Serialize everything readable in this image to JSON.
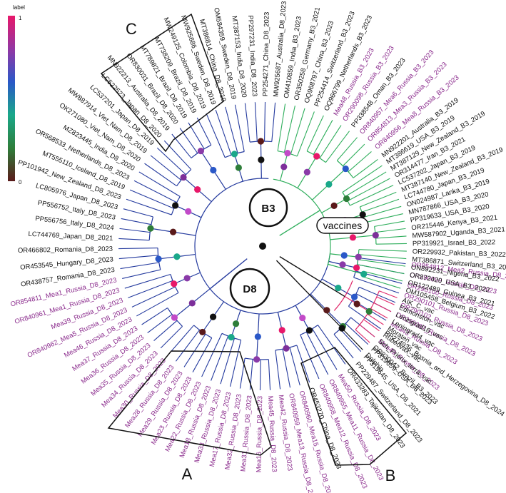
{
  "legend": {
    "title": "label",
    "max": "1",
    "min": "0"
  },
  "colors": {
    "b3_branch": "#2fae5c",
    "d8_branch": "#243a9e",
    "vaccine_branch": "#e0286a",
    "root_branch": "#111111",
    "purple_text": "#8a2a8c",
    "black_text": "#101010"
  },
  "clades": {
    "b3": "B3",
    "d8": "D8",
    "vaccines": "vaccines"
  },
  "boxes": {
    "a": "A",
    "b": "B",
    "c": "C"
  },
  "tips": [
    {
      "label": "OR854812_Mea2_Russia_D8_2023",
      "angle": 7,
      "color": "purple",
      "group": "D8"
    },
    {
      "label": "OR290099_Russia_D8_2023",
      "angle": 11,
      "color": "purple",
      "group": "D8"
    },
    {
      "label": "OR290100_Russia_D8_2023",
      "angle": 15,
      "color": "purple",
      "group": "D8"
    },
    {
      "label": "OR290101_Russia_D8_2023",
      "angle": 19,
      "color": "purple",
      "group": "D8"
    },
    {
      "label": "OR290102_Russia_D8_2023",
      "angle": 23,
      "color": "purple",
      "group": "D8"
    },
    {
      "label": "OR290097_Russia_D8_2023",
      "angle": 27,
      "color": "purple",
      "group": "D8"
    },
    {
      "label": "Mea43_Russia_D8_2023",
      "angle": 31,
      "color": "purple",
      "group": "D8"
    },
    {
      "label": "PP274936_Bosnia_and_Herzegovina_D8_2024",
      "angle": 35,
      "color": "black",
      "group": "D8"
    },
    {
      "label": "Mea49_Russia_D8_2023",
      "angle": 39,
      "color": "purple",
      "group": "D8"
    },
    {
      "label": "PP319659_USA_D8_2023",
      "angle": 43,
      "color": "black",
      "group": "D8"
    },
    {
      "label": "PP319645_USA_D8_2021",
      "angle": 47,
      "color": "black",
      "group": "D8"
    },
    {
      "label": "PP229487_Switzerland_D8_2023",
      "angle": 51,
      "color": "black",
      "group": "D8"
    },
    {
      "label": "OR433283_Tajikistan_D8_2023",
      "angle": 55,
      "color": "black",
      "group": "D8"
    },
    {
      "label": "Mea50_Russia_D8_2023",
      "angle": 59,
      "color": "purple",
      "group": "D8"
    },
    {
      "label": "OR840955_Mea11_Russia_D8_2023",
      "angle": 63,
      "color": "purple",
      "group": "D8"
    },
    {
      "label": "OR840958_Mea12_Russia_D8_2023",
      "angle": 67,
      "color": "purple",
      "group": "D8"
    },
    {
      "label": "OR453270_China_D8_2023",
      "angle": 71,
      "color": "black",
      "group": "D8"
    },
    {
      "label": "OR840960_Mea15_Russia_D8_2023",
      "angle": 75,
      "color": "purple",
      "group": "D8"
    },
    {
      "label": "OR840959_Mea13_Russia_D8_2023",
      "angle": 79,
      "color": "purple",
      "group": "D8"
    },
    {
      "label": "Mea42_Russia_D8_2023",
      "angle": 83,
      "color": "purple",
      "group": "D8"
    },
    {
      "label": "Mea45_Russia_D8_2023",
      "angle": 87,
      "color": "purple",
      "group": "D8"
    },
    {
      "label": "Mea16_Russia_D8_2023",
      "angle": 91,
      "color": "purple",
      "group": "D8"
    },
    {
      "label": "Mea31_Russia_D8_2023",
      "angle": 95,
      "color": "purple",
      "group": "D8"
    },
    {
      "label": "Mea32_Russia_D8_2023",
      "angle": 99,
      "color": "purple",
      "group": "D8"
    },
    {
      "label": "Mea17_Russia_D8_2023",
      "angle": 103,
      "color": "purple",
      "group": "D8"
    },
    {
      "label": "Mea33_Russia_D8_2023",
      "angle": 107,
      "color": "purple",
      "group": "D8"
    },
    {
      "label": "Mea18_Russia_D8_2023",
      "angle": 111,
      "color": "purple",
      "group": "D8"
    },
    {
      "label": "Mea22_Russia_D8_2023",
      "angle": 115,
      "color": "purple",
      "group": "D8"
    },
    {
      "label": "Mea23_Russia_D8_2023",
      "angle": 119,
      "color": "purple",
      "group": "D8"
    },
    {
      "label": "Mea29_Russia_D8_2023",
      "angle": 123,
      "color": "purple",
      "group": "D8"
    },
    {
      "label": "Mea28_Russia_D8_2023",
      "angle": 127,
      "color": "purple",
      "group": "D8"
    },
    {
      "label": "Mea30_Russia_D8_2023",
      "angle": 131,
      "color": "purple",
      "group": "D8"
    },
    {
      "label": "Mea34_Russia_D8_2023",
      "angle": 135,
      "color": "purple",
      "group": "D8"
    },
    {
      "label": "Mea35_Russia_D8_2023",
      "angle": 139,
      "color": "purple",
      "group": "D8"
    },
    {
      "label": "Mea36_Russia_D8_2023",
      "angle": 143,
      "color": "purple",
      "group": "D8"
    },
    {
      "label": "Mea37_Russia_D8_2023",
      "angle": 147,
      "color": "purple",
      "group": "D8"
    },
    {
      "label": "Mea46_Russia_D8_2023",
      "angle": 151,
      "color": "purple",
      "group": "D8"
    },
    {
      "label": "OR840962_Mea5_Russia_D8_2023",
      "angle": 155,
      "color": "purple",
      "group": "D8"
    },
    {
      "label": "Mea39_Russia_D8_2023",
      "angle": 159,
      "color": "purple",
      "group": "D8"
    },
    {
      "label": "OR840961_Mea1_Russia_D8_2023",
      "angle": 163,
      "color": "purple",
      "group": "D8"
    },
    {
      "label": "OR854811_Mea1_Russia_D8_2023",
      "angle": 167,
      "color": "purple",
      "group": "D8"
    },
    {
      "label": "OR438757_Romania_D8_2023",
      "angle": 171,
      "color": "black",
      "group": "D8"
    },
    {
      "label": "OR453545_Hungary_D8_2023",
      "angle": 175,
      "color": "black",
      "group": "D8"
    },
    {
      "label": "OR466802_Romania_D8_2023",
      "angle": 179,
      "color": "black",
      "group": "D8"
    },
    {
      "label": "LC744769_Japan_D8_2021",
      "angle": 183,
      "color": "black",
      "group": "D8"
    },
    {
      "label": "PP556756_Italy_D8_2024",
      "angle": 187,
      "color": "black",
      "group": "D8"
    },
    {
      "label": "PP556752_Italy_D8_2023",
      "angle": 191,
      "color": "black",
      "group": "D8"
    },
    {
      "label": "LC805976_Japan_D8_2023",
      "angle": 195,
      "color": "black",
      "group": "D8"
    },
    {
      "label": "PP101942_New_Zealand_D8_2023",
      "angle": 199,
      "color": "black",
      "group": "D8"
    },
    {
      "label": "MT555110_Iceland_D8_2019",
      "angle": 203,
      "color": "black",
      "group": "D8"
    },
    {
      "label": "OR568533_Netherlands_D8_2023",
      "angle": 207,
      "color": "black",
      "group": "D8"
    },
    {
      "label": "MZ823445_India_D8_2020",
      "angle": 211,
      "color": "black",
      "group": "D8"
    },
    {
      "label": "OK271080_Viet_Nam_D8_2020",
      "angle": 215,
      "color": "black",
      "group": "D8"
    },
    {
      "label": "MW887914_Viet_Nam_D8_2019",
      "angle": 219,
      "color": "black",
      "group": "D8"
    },
    {
      "label": "LC537201_Japan_D8_2019",
      "angle": 223,
      "color": "black",
      "group": "D8"
    },
    {
      "label": "LC522523_Japan_D8_2020",
      "angle": 227,
      "color": "black",
      "group": "D8"
    },
    {
      "label": "MN922213_Australia_D8_2019",
      "angle": 231,
      "color": "black",
      "group": "D8"
    },
    {
      "label": "OR830031_Brazil_D8_2020",
      "angle": 235,
      "color": "black",
      "group": "D8"
    },
    {
      "label": "MT789821_Brazil_D8_2019",
      "angle": 239,
      "color": "black",
      "group": "D8"
    },
    {
      "label": "MT738209_Brazil_D8_2019",
      "angle": 243,
      "color": "black",
      "group": "D8"
    },
    {
      "label": "MW249125_Colombia_D8_2019",
      "angle": 247,
      "color": "black",
      "group": "D8"
    },
    {
      "label": "MW925686_Sweden_D8_2019",
      "angle": 251,
      "color": "black",
      "group": "D8"
    },
    {
      "label": "MT386814_China_D8_2019",
      "angle": 255,
      "color": "black",
      "group": "D8"
    },
    {
      "label": "OM584359_Sweden_D8_2019",
      "angle": 259,
      "color": "black",
      "group": "D8"
    },
    {
      "label": "MT387153_India_D8_2020",
      "angle": 263,
      "color": "black",
      "group": "D8"
    },
    {
      "label": "PP297231_India_D8_2023",
      "angle": 267,
      "color": "black",
      "group": "D8"
    },
    {
      "label": "PP254271_China_D8_2023",
      "angle": 271,
      "color": "black",
      "group": "D8"
    },
    {
      "label": "MW925687_Australia_D8_2023",
      "angle": 275,
      "color": "black",
      "group": "D8"
    },
    {
      "label": "OM410859_India_B3_2023",
      "angle": 279,
      "color": "black",
      "group": "B3"
    },
    {
      "label": "OR350258_Germany_B3_2021",
      "angle": 283,
      "color": "black",
      "group": "B3"
    },
    {
      "label": "OQ968797_China_B3_2023",
      "angle": 287,
      "color": "black",
      "group": "B3"
    },
    {
      "label": "PP254414_Switzerland_B3_2023",
      "angle": 291,
      "color": "black",
      "group": "B3"
    },
    {
      "label": "OQ966799_Netherlands_B3_2023",
      "angle": 295,
      "color": "black",
      "group": "B3"
    },
    {
      "label": "Mea48_Russia_B3_2023",
      "angle": 299,
      "color": "purple",
      "group": "B3"
    },
    {
      "label": "OR290098_Russia_B3_2023",
      "angle": 303,
      "color": "purple",
      "group": "B3"
    },
    {
      "label": "PP338548_Oman_B3_2023",
      "angle": 307,
      "color": "black",
      "group": "B3"
    },
    {
      "label": "OR840957_Mea6_Russia_B3_2023",
      "angle": 311,
      "color": "purple",
      "group": "B3"
    },
    {
      "label": "OR854813_Mea3_Russia_B3_2023",
      "angle": 315,
      "color": "purple",
      "group": "B3"
    },
    {
      "label": "OR840956_Mea8_Russia_B3_2023",
      "angle": 319,
      "color": "purple",
      "group": "B3"
    },
    {
      "label": "MN922201_Australia_B3_2019",
      "angle": 323,
      "color": "black",
      "group": "B3"
    },
    {
      "label": "MT386619_USA_B3_2019",
      "angle": 326,
      "color": "black",
      "group": "B3"
    },
    {
      "label": "MT387129_New_Zealand_B3_2019",
      "angle": 329,
      "color": "black",
      "group": "B3"
    },
    {
      "label": "OR314477_Iran_B3_2021",
      "angle": 332,
      "color": "black",
      "group": "B3"
    },
    {
      "label": "LC537202_Japan_B3_2019",
      "angle": 335,
      "color": "black",
      "group": "B3"
    },
    {
      "label": "MT387140_New_Zealand_B3_2019",
      "angle": 338,
      "color": "black",
      "group": "B3"
    },
    {
      "label": "LC744780_Japan_B3_2019",
      "angle": 341,
      "color": "black",
      "group": "B3"
    },
    {
      "label": "ON024987_Lanka_B3_2019",
      "angle": 344,
      "color": "black",
      "group": "B3"
    },
    {
      "label": "MN787866_USA_B3_2020",
      "angle": 347,
      "color": "black",
      "group": "B3"
    },
    {
      "label": "PP319633_USA_B3_2020",
      "angle": 350,
      "color": "black",
      "group": "B3"
    },
    {
      "label": "OR215446_Kenya_B3_2021",
      "angle": 353,
      "color": "black",
      "group": "B3"
    },
    {
      "label": "MW587902_Uganda_B3_2021",
      "angle": 356,
      "color": "black",
      "group": "B3"
    },
    {
      "label": "PP319921_Israel_B3_2022",
      "angle": 359,
      "color": "black",
      "group": "B3"
    },
    {
      "label": "OR229932_Pakistan_B3_2022",
      "angle": 362,
      "color": "black",
      "group": "B3"
    },
    {
      "label": "MT386871_Switzerland_B3_2019",
      "angle": 365,
      "color": "black",
      "group": "B3"
    },
    {
      "label": "ON892231_Nigeria_B3_2022",
      "angle": 368,
      "color": "black",
      "group": "B3"
    },
    {
      "label": "OR872420_USA_B3_2022",
      "angle": 371,
      "color": "black",
      "group": "B3"
    },
    {
      "label": "OR122489_Guinea_B3_2021",
      "angle": 374,
      "color": "black",
      "group": "B3"
    },
    {
      "label": "OM105458_Belgium_B3_2022",
      "angle": 377,
      "color": "black",
      "group": "B3"
    },
    {
      "label": "AIK_C_vac",
      "angle": 381,
      "color": "black",
      "group": "vac"
    },
    {
      "label": "Edmonston_vac",
      "angle": 384,
      "color": "black",
      "group": "vac"
    },
    {
      "label": "Leningrad16_vac",
      "angle": 387,
      "color": "black",
      "group": "vac"
    },
    {
      "label": "Leningrad4_vac",
      "angle": 390,
      "color": "black",
      "group": "vac"
    },
    {
      "label": "Moraten_vac",
      "angle": 393,
      "color": "black",
      "group": "vac"
    },
    {
      "label": "Rubeovax_vac",
      "angle": 396,
      "color": "black",
      "group": "vac"
    },
    {
      "label": "Sch_Priorix_terra_vac",
      "angle": 399,
      "color": "black",
      "group": "vac"
    },
    {
      "label": "OR830042_Brazil_B3_2023",
      "angle": 402,
      "color": "black",
      "group": "vac"
    },
    {
      "label": "Dolphin",
      "angle": 406,
      "color": "black",
      "group": "out"
    }
  ]
}
